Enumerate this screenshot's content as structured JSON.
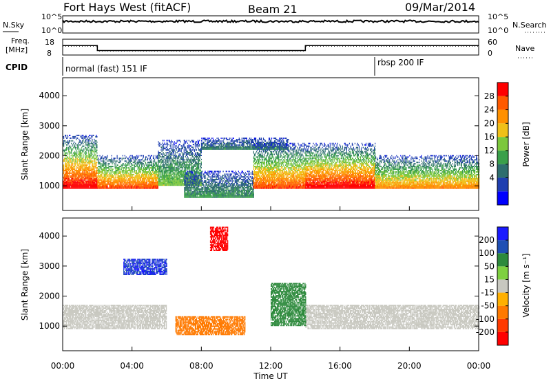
{
  "header": {
    "station": "Fort Hays West (fitACF)",
    "beam": "Beam 21",
    "date": "09/Mar/2014"
  },
  "noise_panel": {
    "left_label": "N.Sky",
    "right_label": "N.Search",
    "left_ticks": [
      "10^5",
      "10^0"
    ],
    "right_ticks": [
      "10^5",
      "10^0"
    ]
  },
  "freq_panel": {
    "left_label": "Freq.",
    "left_unit": "[MHz]",
    "right_label": "Nave",
    "left_ticks": [
      "18",
      "8"
    ],
    "right_ticks": [
      "60",
      "0"
    ]
  },
  "cpid_panel": {
    "label": "CPID",
    "modes": [
      {
        "name": "normal (fast) 151 IF",
        "start_hour": 0,
        "end_hour": 18
      },
      {
        "name": "rbsp 200 IF",
        "start_hour": 18,
        "end_hour": 24
      }
    ]
  },
  "power_panel": {
    "ylabel": "Slant Range [km]",
    "y_ticks": [
      "4000",
      "3000",
      "2000",
      "1000"
    ],
    "colorbar_label": "Power [dB]",
    "colorbar_ticks": [
      "28",
      "24",
      "20",
      "16",
      "12",
      "8",
      "4"
    ],
    "colors": [
      "#0000ff",
      "#1f3fb0",
      "#2e6e6e",
      "#3aa04a",
      "#7cc83c",
      "#f0c018",
      "#ff9000",
      "#ff5a00",
      "#ff0000"
    ]
  },
  "velocity_panel": {
    "ylabel": "Slant Range [km]",
    "y_ticks": [
      "4000",
      "3000",
      "2000",
      "1000"
    ],
    "colorbar_label": "Velocity [m s⁻¹]",
    "colorbar_ticks": [
      "200",
      "100",
      "50",
      "15",
      "-15",
      "-50",
      "-100",
      "-200"
    ],
    "colors": [
      "#1a1aff",
      "#1f4fb4",
      "#2d8a3c",
      "#7ed040",
      "#c8c8c0",
      "#ffb000",
      "#ff7a00",
      "#ff3a00",
      "#ff0000"
    ]
  },
  "x_axis": {
    "label": "Time UT",
    "ticks": [
      "00:00",
      "04:00",
      "08:00",
      "12:00",
      "16:00",
      "20:00",
      "00:00"
    ]
  },
  "chart_data": {
    "type": "heatmap",
    "x_range_hours": [
      0,
      24
    ],
    "y_range_km": [
      180,
      4600
    ],
    "freq_series": [
      {
        "start_hour": 0,
        "end_hour": 2,
        "value_mhz": 14.5
      },
      {
        "start_hour": 2,
        "end_hour": 14,
        "value_mhz": 10.5
      },
      {
        "start_hour": 14,
        "end_hour": 24,
        "value_mhz": 14.5
      }
    ],
    "power_regions": [
      {
        "t0": 0.0,
        "t1": 2.0,
        "r0": 900,
        "r1": 2700,
        "peak_db": 28
      },
      {
        "t0": 2.0,
        "t1": 5.5,
        "r0": 900,
        "r1": 2000,
        "peak_db": 24
      },
      {
        "t0": 5.5,
        "t1": 8.0,
        "r0": 1000,
        "r1": 2500,
        "peak_db": 12
      },
      {
        "t0": 7.0,
        "t1": 11.0,
        "r0": 600,
        "r1": 1500,
        "peak_db": 8
      },
      {
        "t0": 8.0,
        "t1": 13.0,
        "r0": 2200,
        "r1": 2600,
        "peak_db": 6
      },
      {
        "t0": 11.0,
        "t1": 14.0,
        "r0": 900,
        "r1": 2400,
        "peak_db": 24
      },
      {
        "t0": 14.0,
        "t1": 18.0,
        "r0": 900,
        "r1": 2400,
        "peak_db": 28
      },
      {
        "t0": 18.0,
        "t1": 24.0,
        "r0": 900,
        "r1": 2000,
        "peak_db": 20
      }
    ],
    "velocity_regions": [
      {
        "t0": 0.0,
        "t1": 6.0,
        "r0": 900,
        "r1": 1700,
        "velocity": 0
      },
      {
        "t0": 14.0,
        "t1": 24.0,
        "r0": 900,
        "r1": 1700,
        "velocity": 0
      },
      {
        "t0": 6.5,
        "t1": 10.5,
        "r0": 700,
        "r1": 1300,
        "velocity": -60
      },
      {
        "t0": 12.0,
        "t1": 14.0,
        "r0": 1000,
        "r1": 2400,
        "velocity": 40
      },
      {
        "t0": 3.5,
        "t1": 6.0,
        "r0": 2700,
        "r1": 3200,
        "velocity": 150
      },
      {
        "t0": 8.5,
        "t1": 9.5,
        "r0": 3500,
        "r1": 4300,
        "velocity": -180
      }
    ]
  }
}
